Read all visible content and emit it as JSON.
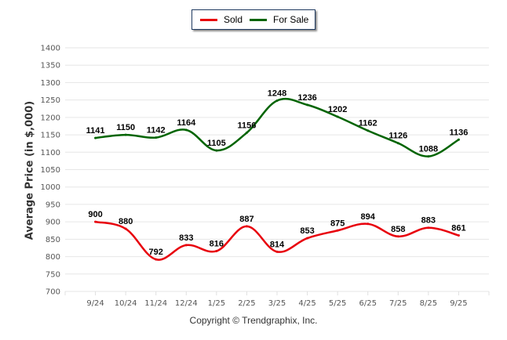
{
  "chart_data": {
    "type": "line",
    "title": "",
    "xlabel": "",
    "ylabel": "Average Price (in $,000)",
    "ylim": [
      700,
      1400
    ],
    "yticks": [
      "700",
      "750",
      "800",
      "850",
      "900",
      "950",
      "1000",
      "1050",
      "1100",
      "1150",
      "1200",
      "1250",
      "1300",
      "1350",
      "1400"
    ],
    "categories": [
      "9/24",
      "10/24",
      "11/24",
      "12/24",
      "1/25",
      "2/25",
      "3/25",
      "4/25",
      "5/25",
      "6/25",
      "7/25",
      "8/25",
      "9/25"
    ],
    "grid": true,
    "legend_position": "top-center",
    "series": [
      {
        "name": "Sold",
        "color": "#e8000b",
        "values": [
          900,
          880,
          792,
          833,
          816,
          887,
          814,
          853,
          875,
          894,
          858,
          883,
          861
        ]
      },
      {
        "name": "For Sale",
        "color": "#006400",
        "values": [
          1141,
          1150,
          1142,
          1164,
          1105,
          1156,
          1248,
          1236,
          1202,
          1162,
          1126,
          1088,
          1136
        ]
      }
    ]
  },
  "footer": {
    "copyright": "Copyright © Trendgraphix, Inc."
  }
}
